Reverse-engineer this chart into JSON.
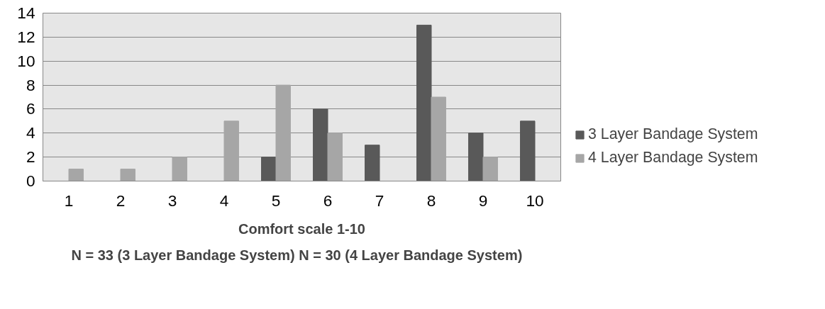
{
  "chart_data": {
    "type": "bar",
    "xlabel": "Comfort scale 1-10",
    "categories": [
      "1",
      "2",
      "3",
      "4",
      "5",
      "6",
      "7",
      "8",
      "9",
      "10"
    ],
    "series": [
      {
        "name": "3 Layer Bandage System",
        "color": "#595959",
        "values": [
          0,
          0,
          0,
          0,
          2,
          6,
          3,
          13,
          4,
          5
        ]
      },
      {
        "name": "4 Layer Bandage System",
        "color": "#a6a6a6",
        "values": [
          1,
          1,
          2,
          5,
          8,
          4,
          0,
          7,
          2,
          0
        ]
      }
    ],
    "ylim": [
      0,
      14
    ],
    "yticks": [
      0,
      2,
      4,
      6,
      8,
      10,
      12,
      14
    ],
    "grid": "y",
    "legend": "right",
    "annotations": [
      "N = 33 (3 Layer Bandage System) N = 30 (4 Layer Bandage System)"
    ]
  }
}
